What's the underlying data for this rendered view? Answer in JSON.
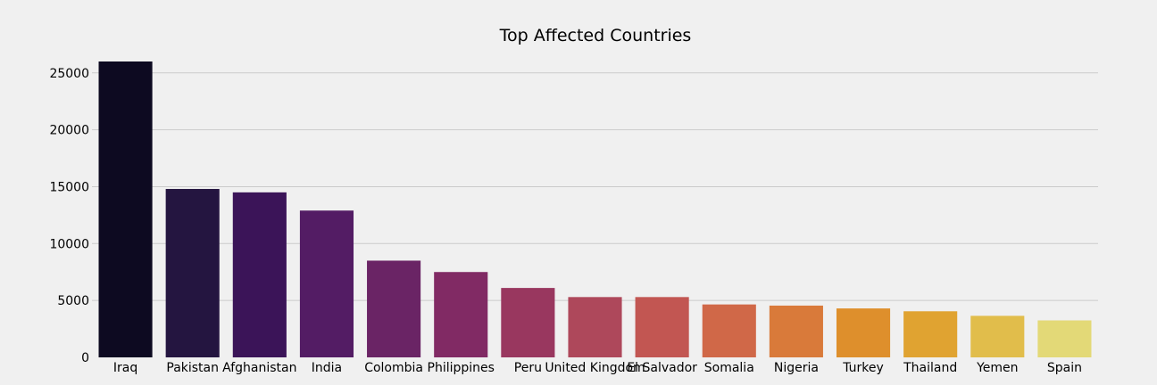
{
  "chart_data": {
    "type": "bar",
    "title": "Top Affected Countries",
    "xlabel": "",
    "ylabel": "",
    "categories": [
      "Iraq",
      "Pakistan",
      "Afghanistan",
      "India",
      "Colombia",
      "Philippines",
      "Peru",
      "United Kingdom",
      "El Salvador",
      "Somalia",
      "Nigeria",
      "Turkey",
      "Thailand",
      "Yemen",
      "Spain"
    ],
    "values": [
      26000,
      14800,
      14500,
      12900,
      8500,
      7500,
      6100,
      5300,
      5300,
      4650,
      4550,
      4300,
      4050,
      3650,
      3250
    ],
    "ylim": [
      0,
      26000
    ],
    "yticks": [
      0,
      5000,
      10000,
      15000,
      20000,
      25000
    ],
    "grid": "horizontal",
    "colors": [
      "#0d0a21",
      "#241540",
      "#3b1458",
      "#531c64",
      "#6a2465",
      "#812a64",
      "#99375f",
      "#ae485b",
      "#c25652",
      "#d06848",
      "#d97a3a",
      "#de8f2c",
      "#e0a331",
      "#e1bd4b",
      "#e3d977"
    ]
  }
}
